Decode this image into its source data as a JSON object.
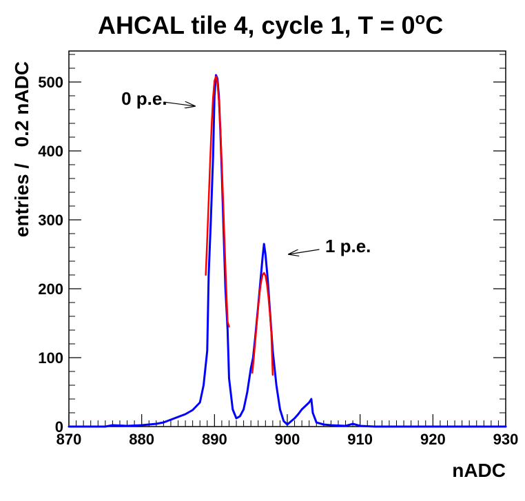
{
  "chart_data": {
    "type": "line",
    "title": "AHCAL tile 4, cycle 1, T = 0",
    "title_superscript": "o",
    "title_suffix": "C",
    "xlabel": "nADC",
    "ylabel": "entries /   0.2 nADC",
    "xlim": [
      870,
      930
    ],
    "ylim": [
      0,
      545
    ],
    "x_ticks": [
      870,
      880,
      890,
      900,
      910,
      920,
      930
    ],
    "y_ticks": [
      0,
      100,
      200,
      300,
      400,
      500
    ],
    "x_tick_labels": [
      "870",
      "880",
      "890",
      "900",
      "910",
      "920",
      "930"
    ],
    "y_tick_labels": [
      "0",
      "100",
      "200",
      "300",
      "400",
      "500"
    ],
    "series": [
      {
        "name": "histogram",
        "color": "#0000ff",
        "x": [
          870,
          875,
          876,
          878,
          880,
          882,
          883,
          884,
          885,
          886,
          887,
          888,
          888.5,
          889,
          889.2,
          889.5,
          889.8,
          890,
          890.2,
          890.4,
          890.6,
          890.8,
          891,
          891.2,
          891.5,
          891.8,
          892,
          892.5,
          893,
          893.5,
          894,
          894.5,
          895,
          895.3,
          895.6,
          896,
          896.3,
          896.6,
          896.8,
          897,
          897.3,
          897.6,
          898,
          898.5,
          899,
          899.5,
          900,
          901,
          901.5,
          902,
          902.5,
          903,
          903.3,
          903.5,
          904,
          905,
          906,
          908,
          909,
          910,
          912,
          930
        ],
        "values": [
          0,
          0,
          2,
          1,
          2,
          4,
          6,
          10,
          14,
          18,
          24,
          35,
          60,
          110,
          220,
          300,
          390,
          480,
          510,
          505,
          480,
          430,
          370,
          300,
          200,
          140,
          70,
          25,
          12,
          15,
          25,
          50,
          85,
          100,
          130,
          175,
          210,
          245,
          265,
          250,
          215,
          170,
          110,
          60,
          25,
          8,
          3,
          12,
          18,
          25,
          30,
          35,
          40,
          20,
          6,
          3,
          2,
          1,
          4,
          1,
          0,
          0
        ]
      },
      {
        "name": "fit-peak-0",
        "color": "#ff0000",
        "x": [
          888.8,
          889,
          889.2,
          889.4,
          889.6,
          889.8,
          890,
          890.2,
          890.3,
          890.4,
          890.6,
          890.8,
          891,
          891.2,
          891.4,
          891.6,
          891.8,
          892
        ],
        "values": [
          220,
          272,
          328,
          384,
          436,
          477,
          502,
          508,
          506,
          499,
          473,
          434,
          383,
          324,
          262,
          204,
          152,
          145
        ]
      },
      {
        "name": "fit-peak-1",
        "color": "#ff0000",
        "x": [
          895.2,
          895.4,
          895.6,
          895.8,
          896,
          896.2,
          896.4,
          896.6,
          896.8,
          897,
          897.2,
          897.4,
          897.6,
          897.8,
          898
        ],
        "values": [
          78,
          100,
          124,
          149,
          173,
          194,
          210,
          220,
          223,
          219,
          207,
          189,
          165,
          137,
          75
        ]
      }
    ],
    "annotations": [
      {
        "text": "0 p.e.",
        "x": 877.2,
        "y": 467,
        "arrow_from": [
          883,
          471
        ],
        "arrow_to": [
          887.3,
          465
        ]
      },
      {
        "text": "1 p.e.",
        "x": 905.2,
        "y": 253,
        "arrow_from": [
          904.4,
          257
        ],
        "arrow_to": [
          900.2,
          250
        ]
      }
    ]
  }
}
